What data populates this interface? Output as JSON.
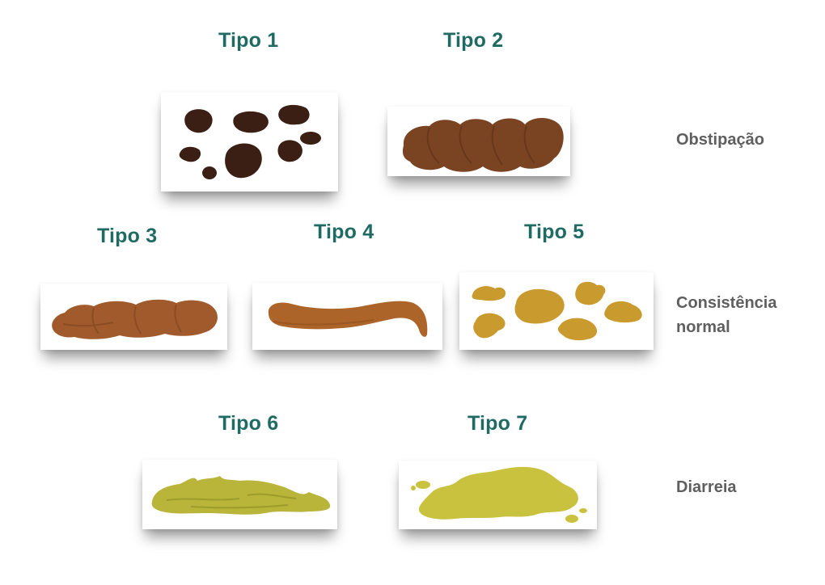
{
  "types": [
    {
      "label": "Tipo 1",
      "color": "#3b1f14"
    },
    {
      "label": "Tipo 2",
      "color": "#7a4423"
    },
    {
      "label": "Tipo 3",
      "color": "#a05a2c"
    },
    {
      "label": "Tipo 4",
      "color": "#ad6428"
    },
    {
      "label": "Tipo 5",
      "color": "#c99a2e"
    },
    {
      "label": "Tipo 6",
      "color": "#b8b53a"
    },
    {
      "label": "Tipo 7",
      "color": "#c9c23e"
    }
  ],
  "categories": [
    {
      "label": "Obstipação"
    },
    {
      "label": "Consistência normal"
    },
    {
      "label": "Diarreia"
    }
  ],
  "colors": {
    "heading": "#1f6b63",
    "category": "#5f5f5f"
  }
}
